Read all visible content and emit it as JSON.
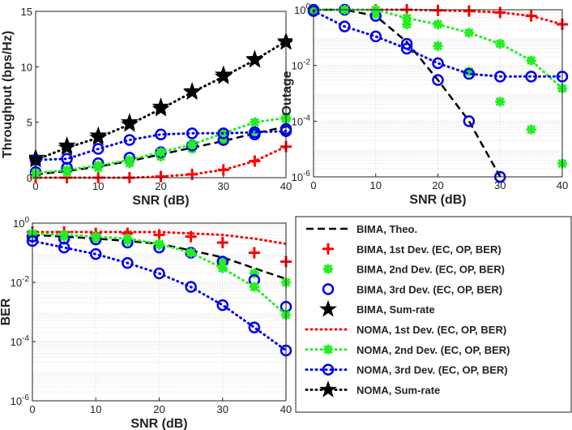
{
  "chart_data": [
    {
      "type": "line",
      "ylabel": "Throughput (bps/Hz)",
      "xlabel": "SNR (dB)",
      "yscale": "linear",
      "grid": false,
      "x": [
        0,
        5,
        10,
        15,
        20,
        25,
        30,
        35,
        40
      ],
      "xlim": [
        0,
        40
      ],
      "xticks": [
        0,
        10,
        20,
        30,
        40
      ],
      "ylim": [
        0,
        15
      ],
      "yticks": [
        0,
        5,
        10,
        15
      ],
      "series": [
        {
          "name": "BIMA, Theo.",
          "color": "#000000",
          "line": "dashed",
          "marker": "none",
          "values": [
            0.3,
            0.6,
            1.0,
            1.5,
            2.1,
            2.7,
            3.3,
            4.0,
            4.6
          ]
        },
        {
          "name": "BIMA, 1st Dev. (EC, OP, BER)",
          "color": "#ff0000",
          "line": "none",
          "marker": "plus",
          "values": [
            0,
            0,
            0,
            0,
            0.1,
            0.3,
            0.7,
            1.5,
            2.8
          ]
        },
        {
          "name": "BIMA, 2nd Dev. (EC, OP, BER)",
          "color": "#22ee22",
          "line": "none",
          "marker": "asterisk",
          "values": [
            0.3,
            0.5,
            0.9,
            1.3,
            1.9,
            2.6,
            3.3,
            4.2,
            5.3
          ]
        },
        {
          "name": "BIMA, 3rd Dev. (EC, OP, BER)",
          "color": "#0000ee",
          "line": "none",
          "marker": "circle",
          "values": [
            0.5,
            0.9,
            1.3,
            1.8,
            2.3,
            2.9,
            3.4,
            3.9,
            4.4
          ]
        },
        {
          "name": "BIMA, Sum-rate",
          "color": "#000000",
          "line": "none",
          "marker": "star",
          "values": [
            1.8,
            2.9,
            3.8,
            5.0,
            6.4,
            7.8,
            9.3,
            10.7,
            12.2
          ]
        },
        {
          "name": "NOMA, 1st Dev. (EC, OP, BER)",
          "color": "#ff0000",
          "line": "dotted",
          "marker": "none",
          "values": [
            0,
            0,
            0,
            0,
            0.1,
            0.3,
            0.7,
            1.5,
            2.8
          ]
        },
        {
          "name": "NOMA, 2nd Dev. (EC, OP, BER)",
          "color": "#22ee22",
          "line": "dotted",
          "marker": "asterisk",
          "values": [
            0.4,
            0.7,
            1.1,
            1.6,
            2.3,
            3.0,
            4.0,
            5.0,
            5.4
          ]
        },
        {
          "name": "NOMA, 3rd Dev. (EC, OP, BER)",
          "color": "#0000ee",
          "line": "dotted",
          "marker": "circle",
          "values": [
            1.6,
            1.7,
            2.6,
            3.4,
            3.9,
            4.0,
            4.0,
            4.1,
            4.2
          ]
        },
        {
          "name": "NOMA, Sum-rate",
          "color": "#000000",
          "line": "dotted",
          "marker": "star",
          "values": [
            1.6,
            2.7,
            3.6,
            4.8,
            6.2,
            7.7,
            9.1,
            10.6,
            12.3
          ]
        }
      ]
    },
    {
      "type": "line",
      "ylabel": "Outage",
      "xlabel": "SNR (dB)",
      "yscale": "log",
      "grid": true,
      "x": [
        0,
        5,
        10,
        15,
        20,
        25,
        30,
        35,
        40
      ],
      "xlim": [
        0,
        40
      ],
      "xticks": [
        0,
        10,
        20,
        30,
        40
      ],
      "ylim": [
        1e-06,
        1
      ],
      "yticks": [
        {
          "value": 1e-06,
          "label": "10^-6"
        },
        {
          "value": 0.0001,
          "label": "10^-4"
        },
        {
          "value": 0.01,
          "label": "10^-2"
        },
        {
          "value": 1,
          "label": "10^0"
        }
      ],
      "series": [
        {
          "name": "BIMA, Theo.",
          "color": "#000000",
          "line": "dashed",
          "marker": "none",
          "values": [
            1,
            1,
            0.6,
            0.07,
            0.003,
            0.0001,
            1e-06,
            null,
            null
          ]
        },
        {
          "name": "BIMA, 1st Dev. (EC, OP, BER)",
          "color": "#ff0000",
          "line": "none",
          "marker": "plus",
          "values": [
            1,
            1,
            1,
            1,
            0.95,
            0.9,
            0.8,
            0.6,
            0.3
          ]
        },
        {
          "name": "BIMA, 2nd Dev. (EC, OP, BER)",
          "color": "#22ee22",
          "line": "none",
          "marker": "asterisk",
          "values": [
            1,
            1,
            0.7,
            0.3,
            0.05,
            0.006,
            0.0005,
            5e-05,
            3e-06
          ]
        },
        {
          "name": "BIMA, 3rd Dev. (EC, OP, BER)",
          "color": "#0000ee",
          "line": "none",
          "marker": "circle",
          "values": [
            1,
            1,
            0.6,
            0.06,
            0.003,
            0.0001,
            1e-06,
            null,
            null
          ]
        },
        {
          "name": "NOMA, 1st Dev. (EC, OP, BER)",
          "color": "#ff0000",
          "line": "dotted",
          "marker": "none",
          "values": [
            1,
            1,
            1,
            1,
            0.95,
            0.9,
            0.8,
            0.6,
            0.3
          ]
        },
        {
          "name": "NOMA, 2nd Dev. (EC, OP, BER)",
          "color": "#22ee22",
          "line": "dotted",
          "marker": "asterisk",
          "values": [
            1,
            1,
            1,
            0.5,
            0.3,
            0.15,
            0.06,
            0.015,
            0.0015
          ]
        },
        {
          "name": "NOMA, 3rd Dev. (EC, OP, BER)",
          "color": "#0000ee",
          "line": "dotted",
          "marker": "circle",
          "values": [
            0.9,
            0.25,
            0.11,
            0.04,
            0.012,
            0.005,
            0.004,
            0.004,
            0.004
          ]
        }
      ]
    },
    {
      "type": "line",
      "ylabel": "BER",
      "xlabel": "SNR (dB)",
      "yscale": "log",
      "grid": true,
      "x": [
        0,
        5,
        10,
        15,
        20,
        25,
        30,
        35,
        40
      ],
      "xlim": [
        0,
        40
      ],
      "xticks": [
        0,
        10,
        20,
        30,
        40
      ],
      "ylim": [
        1e-06,
        1
      ],
      "yticks": [
        {
          "value": 1e-06,
          "label": "10^-6"
        },
        {
          "value": 0.0001,
          "label": "10^-4"
        },
        {
          "value": 0.01,
          "label": "10^-2"
        },
        {
          "value": 1,
          "label": "10^0"
        }
      ],
      "series": [
        {
          "name": "BIMA, Theo.",
          "color": "#000000",
          "line": "dashed",
          "marker": "none",
          "values": [
            0.4,
            0.35,
            0.3,
            0.25,
            0.2,
            0.12,
            0.07,
            0.03,
            0.013
          ]
        },
        {
          "name": "BIMA, 1st Dev. (EC, OP, BER)",
          "color": "#ff0000",
          "line": "none",
          "marker": "plus",
          "values": [
            0.5,
            0.5,
            0.45,
            0.45,
            0.4,
            0.35,
            0.22,
            0.1,
            0.05
          ]
        },
        {
          "name": "BIMA, 2nd Dev. (EC, OP, BER)",
          "color": "#22ee22",
          "line": "none",
          "marker": "asterisk",
          "values": [
            0.4,
            0.35,
            0.3,
            0.25,
            0.18,
            0.1,
            0.05,
            0.02,
            0.01
          ]
        },
        {
          "name": "BIMA, 3rd Dev. (EC, OP, BER)",
          "color": "#0000ee",
          "line": "none",
          "marker": "circle",
          "values": [
            0.35,
            0.3,
            0.28,
            0.22,
            0.15,
            0.1,
            0.05,
            0.012,
            0.0015
          ]
        },
        {
          "name": "NOMA, 1st Dev. (EC, OP, BER)",
          "color": "#ff0000",
          "line": "dotted",
          "marker": "none",
          "values": [
            0.5,
            0.5,
            0.5,
            0.5,
            0.5,
            0.45,
            0.4,
            0.3,
            0.2
          ]
        },
        {
          "name": "NOMA, 2nd Dev. (EC, OP, BER)",
          "color": "#22ee22",
          "line": "dotted",
          "marker": "asterisk",
          "values": [
            0.45,
            0.4,
            0.35,
            0.3,
            0.2,
            0.1,
            0.03,
            0.007,
            0.0008
          ]
        },
        {
          "name": "NOMA, 3rd Dev. (EC, OP, BER)",
          "color": "#0000ee",
          "line": "dotted",
          "marker": "circle",
          "values": [
            0.25,
            0.15,
            0.09,
            0.045,
            0.02,
            0.007,
            0.0017,
            0.0003,
            5e-05
          ]
        }
      ]
    }
  ]
}
